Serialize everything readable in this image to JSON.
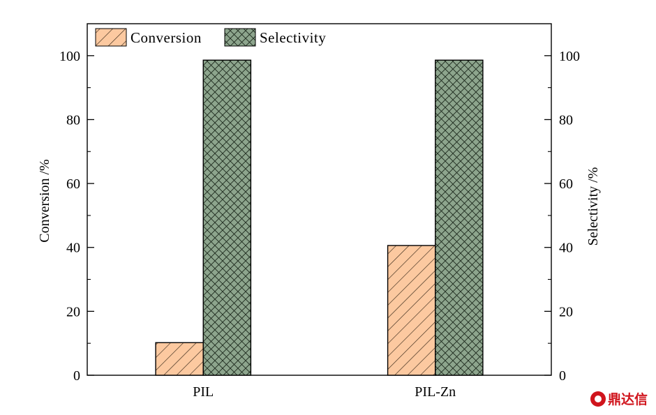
{
  "chart_data": {
    "type": "bar",
    "categories": [
      "PIL",
      "PIL-Zn"
    ],
    "series": [
      {
        "name": "Conversion",
        "values": [
          10.2,
          40.6
        ],
        "color": "#fcc9a0",
        "pattern": "diagonal-hatch",
        "axis": "left"
      },
      {
        "name": "Selectivity",
        "values": [
          98.6,
          98.6
        ],
        "color": "#8da58d",
        "pattern": "crosshatch",
        "axis": "right"
      }
    ],
    "ylabel_left": "Conversion /%",
    "ylabel_right": "Selectivity /%",
    "ylim": [
      0,
      110
    ],
    "yticks": [
      0,
      20,
      40,
      60,
      80,
      100
    ],
    "grid": false,
    "legend_position": "top-left"
  },
  "watermark": {
    "text": "鼎达信",
    "icon": "dingdaxin-logo-icon",
    "color": "#d0141c"
  }
}
